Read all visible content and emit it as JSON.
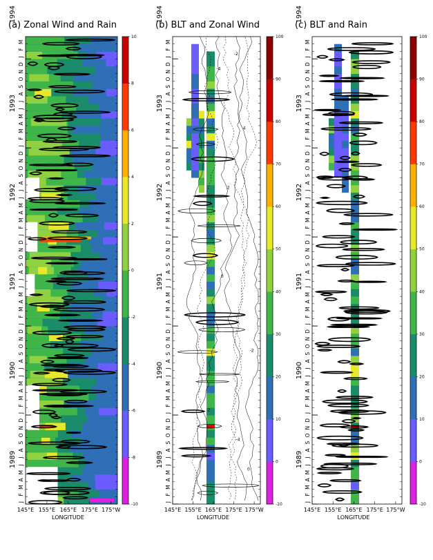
{
  "chart_data": [
    {
      "panel": "a",
      "type": "heatmap",
      "title": "(a)  Zonal Wind and Rain",
      "xlabel": "LONGITUDE",
      "x_ticks": [
        "145°E",
        "155°E",
        "165°E",
        "175°E",
        "175°W"
      ],
      "years": [
        "1989",
        "1990",
        "1991",
        "1992",
        "1993",
        "1994"
      ],
      "month_letters": [
        "J",
        "F",
        "M",
        "A",
        "M",
        "J",
        "J",
        "A",
        "S",
        "O",
        "N",
        "D"
      ],
      "colorbar": {
        "min": -10,
        "max": 10,
        "ticks": [
          -10,
          -8,
          -6,
          -4,
          -2,
          0,
          2,
          4,
          6,
          8,
          10
        ]
      },
      "shading": "zonal wind",
      "contours": "rain"
    },
    {
      "panel": "b",
      "type": "heatmap",
      "title": "(b)  BLT and Zonal Wind",
      "xlabel": "LONGITUDE",
      "x_ticks": [
        "145°E",
        "155°E",
        "165°E",
        "175°E",
        "175°W"
      ],
      "years": [
        "1989",
        "1990",
        "1991",
        "1992",
        "1993",
        "1994"
      ],
      "month_letters": [
        "J",
        "F",
        "M",
        "A",
        "M",
        "J",
        "J",
        "A",
        "S",
        "O",
        "N",
        "D"
      ],
      "colorbar": {
        "min": -10,
        "max": 100,
        "ticks": [
          -10,
          0,
          10,
          20,
          30,
          40,
          50,
          60,
          70,
          80,
          90,
          100
        ]
      },
      "shading": "BLT",
      "contours": "zonal wind",
      "contour_labels": [
        "-4",
        "-2",
        "0",
        "2",
        "4"
      ]
    },
    {
      "panel": "c",
      "type": "heatmap",
      "title": "(c)  BLT and Rain",
      "xlabel": "LONGITUDE",
      "x_ticks": [
        "145°E",
        "155°E",
        "165°E",
        "175°E",
        "175°W"
      ],
      "years": [
        "1989",
        "1990",
        "1991",
        "1992",
        "1993",
        "1994"
      ],
      "month_letters": [
        "J",
        "F",
        "M",
        "A",
        "M",
        "J",
        "J",
        "A",
        "S",
        "O",
        "N",
        "D"
      ],
      "colorbar": {
        "min": -10,
        "max": 100,
        "ticks": [
          -10,
          0,
          10,
          20,
          30,
          40,
          50,
          60,
          70,
          80,
          90,
          100
        ]
      },
      "shading": "BLT",
      "contours": "rain"
    }
  ]
}
